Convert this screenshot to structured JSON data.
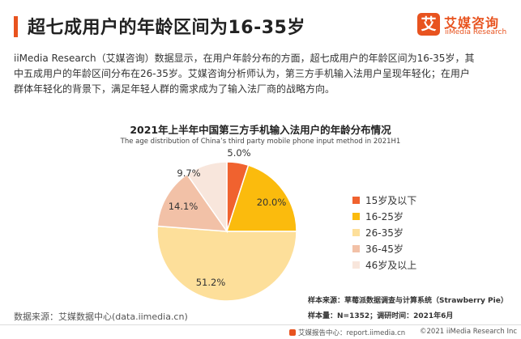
{
  "header": {
    "title": "超七成用户的年龄区间为16-35岁",
    "logo_glyph": "艾",
    "logo_name": "艾媒咨询",
    "logo_en": "iiMedia Research"
  },
  "intro": {
    "line1": "iiMedia Research（艾媒咨询）数据显示，在用户年龄分布的方面，超七成用户的年龄区间为16-35岁，其",
    "line2": "中五成用户的年龄区间分布在26-35岁。艾媒咨询分析师认为，第三方手机输入法用户呈现年轻化；在用户",
    "line3": "群体年轻化的背景下，满足年轻人群的需求成为了输入法厂商的战略方向。"
  },
  "chart_data": {
    "type": "pie",
    "title": "2021年上半年中国第三方手机输入法用户的年龄分布情况",
    "subtitle": "The age distribution  of China’s third party mobile phone input method in 2021H1",
    "categories": [
      "15岁及以下",
      "16-25岁",
      "26-35岁",
      "36-45岁",
      "46岁及以上"
    ],
    "values": [
      5.0,
      20.0,
      51.2,
      14.1,
      9.7
    ],
    "labels": [
      "5.0%",
      "20.0%",
      "51.2%",
      "14.1%",
      "9.7%"
    ],
    "unit": "%",
    "colors": [
      "#f0622f",
      "#fbbb0d",
      "#fddf9a",
      "#f2c1a7",
      "#f8e6dc"
    ],
    "legend_position": "right"
  },
  "notes": {
    "sample_source": "样本来源：草莓派数据调查与计算系统（Strawberry Pie）",
    "sample_size": "样本量：N=1352；调研时间：2021年6月"
  },
  "source": "数据来源：艾媒数据中心(data.iimedia.cn)",
  "footer": {
    "site": "艾媒报告中心：report.iimedia.cn",
    "copyright": "©2021  iiMedia Research  Inc"
  }
}
